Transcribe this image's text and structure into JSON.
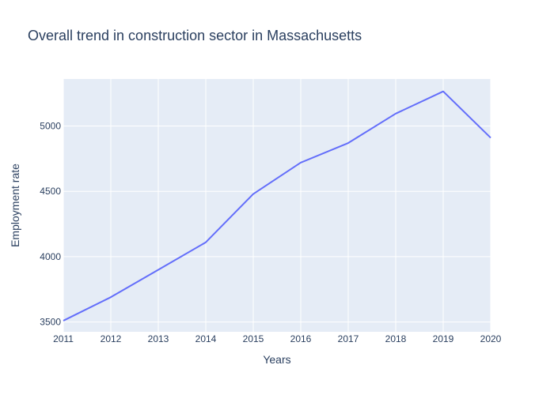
{
  "chart_data": {
    "type": "line",
    "title": "Overall trend in construction sector in Massachusetts",
    "xlabel": "Years",
    "ylabel": "Employment rate",
    "x": [
      2011,
      2012,
      2013,
      2014,
      2015,
      2016,
      2017,
      2018,
      2019,
      2020
    ],
    "series": [
      {
        "values": [
          3510,
          3690,
          3900,
          4110,
          4480,
          4720,
          4870,
          5095,
          5265,
          4910
        ]
      }
    ],
    "xlim": [
      2011,
      2020
    ],
    "ylim": [
      3425,
      5360
    ],
    "xticks": [
      "2011",
      "2012",
      "2013",
      "2014",
      "2015",
      "2016",
      "2017",
      "2018",
      "2019",
      "2020"
    ],
    "yticks": [
      3500,
      4000,
      4500,
      5000
    ],
    "ytick_labels": [
      "3500",
      "4000",
      "4500",
      "5000"
    ],
    "grid": true,
    "legend": "none",
    "colors": {
      "plot_background": "#e5ecf6",
      "grid": "#ffffff",
      "line": "#636efa",
      "text": "#2a3f5f"
    }
  }
}
